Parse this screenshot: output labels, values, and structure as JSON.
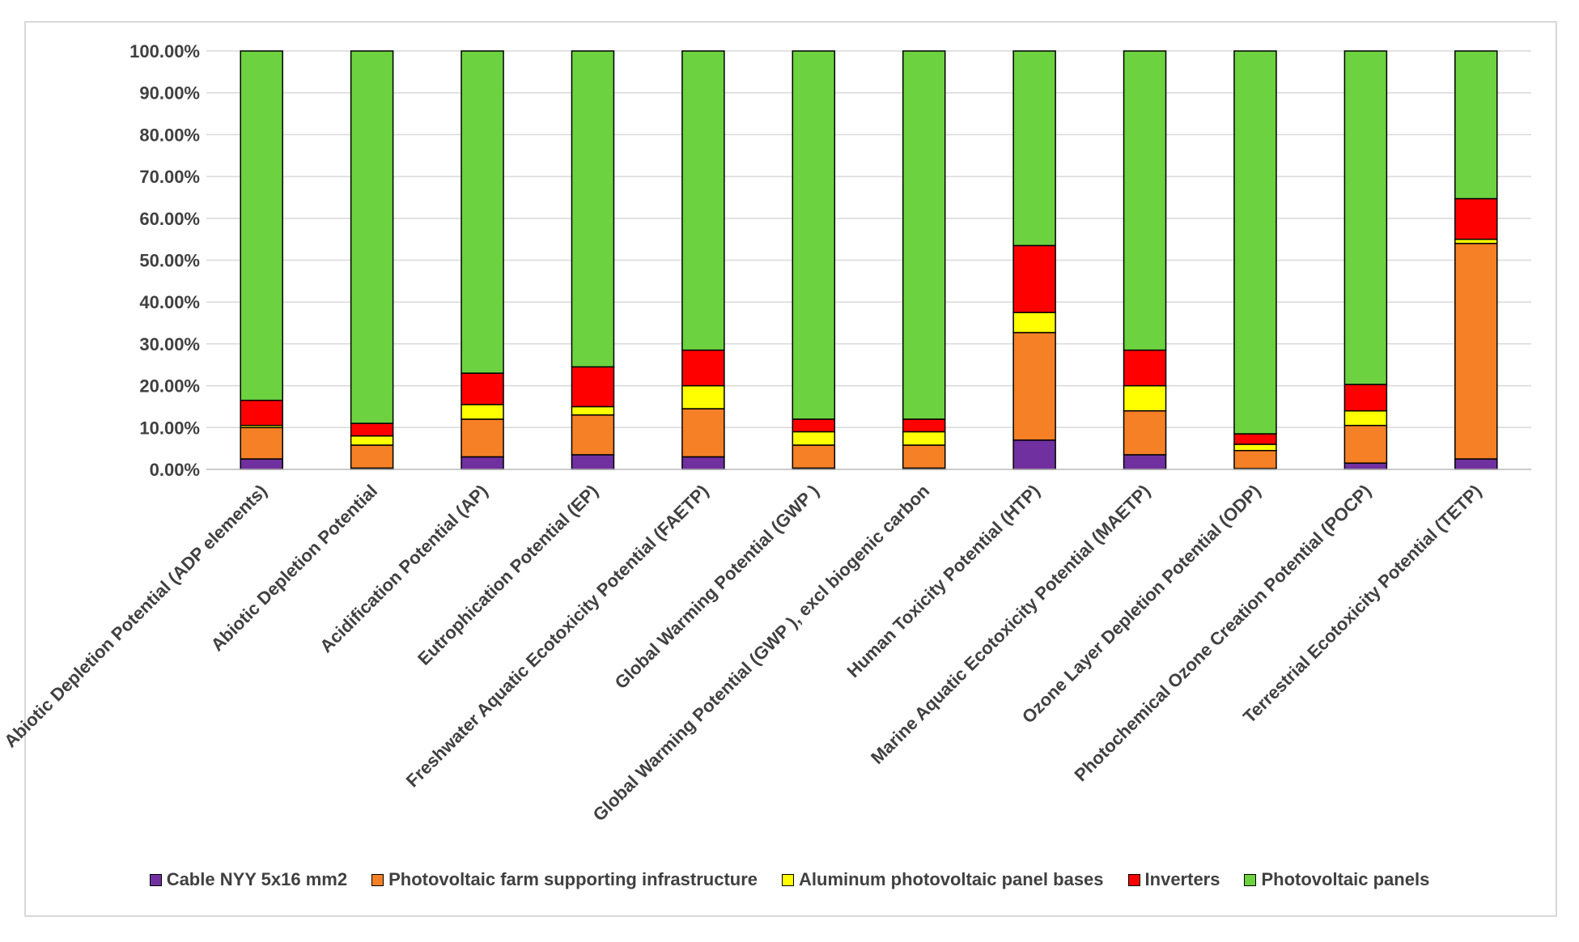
{
  "chart_data": {
    "type": "bar",
    "stacked": true,
    "title": "",
    "xlabel": "",
    "ylabel": "",
    "ylim": [
      0,
      100
    ],
    "yticks": [
      0,
      10,
      20,
      30,
      40,
      50,
      60,
      70,
      80,
      90,
      100
    ],
    "ytick_labels": [
      "0.00%",
      "10.00%",
      "20.00%",
      "30.00%",
      "40.00%",
      "50.00%",
      "60.00%",
      "70.00%",
      "80.00%",
      "90.00%",
      "100.00%"
    ],
    "grid": true,
    "legend_position": "bottom",
    "categories": [
      "Abiotic Depletion Potential (ADP elements)",
      "Abiotic Depletion Potential",
      "Acidification Potential (AP)",
      "Eutrophication Potential (EP)",
      "Freshwater Aquatic Ecotoxicity Potential (FAETP)",
      "Global Warming Potential (GWP )",
      "Global Warming Potential (GWP ), excl biogenic carbon",
      "Human Toxicity Potential (HTP)",
      "Marine Aquatic Ecotoxicity Potential (MAETP)",
      "Ozone Layer Depletion Potential (ODP)",
      "Photochemical Ozone Creation Potential (POCP)",
      "Terrestrial Ecotoxicity Potential (TETP)"
    ],
    "series": [
      {
        "name": "Cable NYY 5x16 mm2",
        "color": "#7030a0",
        "values": [
          2.5,
          0.3,
          3.0,
          3.5,
          3.0,
          0.3,
          0.3,
          7.0,
          3.5,
          0.2,
          1.5,
          2.5
        ]
      },
      {
        "name": "Photovoltaic farm supporting infrastructure",
        "color": "#f58025",
        "values": [
          7.5,
          5.5,
          9.0,
          9.5,
          11.5,
          5.5,
          5.5,
          25.7,
          10.5,
          4.3,
          9.0,
          51.5
        ]
      },
      {
        "name": "Aluminum photovoltaic panel bases",
        "color": "#ffff00",
        "values": [
          0.5,
          2.2,
          3.5,
          2.0,
          5.5,
          3.2,
          3.2,
          4.8,
          6.0,
          1.5,
          3.5,
          1.0
        ]
      },
      {
        "name": "Inverters",
        "color": "#ff0000",
        "values": [
          6.0,
          3.0,
          7.5,
          9.5,
          8.5,
          3.0,
          3.0,
          16.0,
          8.5,
          2.5,
          6.3,
          9.7
        ]
      },
      {
        "name": "Photovoltaic panels",
        "color": "#6cd23f",
        "values": [
          83.5,
          89.0,
          77.0,
          75.5,
          71.5,
          88.0,
          88.0,
          46.5,
          71.5,
          91.5,
          79.7,
          35.3
        ]
      }
    ]
  }
}
